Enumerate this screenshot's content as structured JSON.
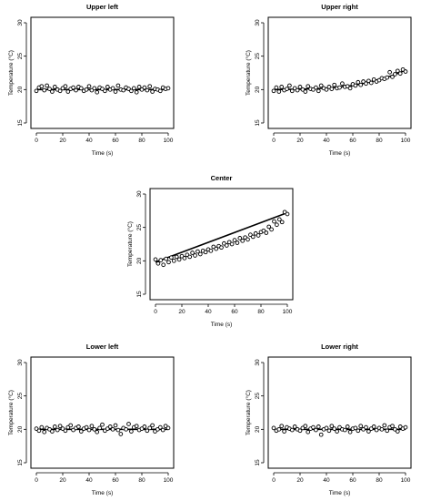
{
  "chart_data": [
    {
      "id": "upper-left",
      "type": "scatter",
      "title": "Upper left",
      "xlabel": "Time (s)",
      "ylabel": "Temperature (°C)",
      "xlim": [
        0,
        100
      ],
      "ylim": [
        15,
        30
      ],
      "xticks": [
        0,
        20,
        40,
        60,
        80,
        100
      ],
      "yticks": [
        15,
        20,
        25,
        30
      ],
      "fit": {
        "x": [
          0,
          20,
          40,
          60,
          80,
          100
        ],
        "y": [
          20.0,
          20.0,
          20.0,
          20.0,
          20.0,
          20.0
        ]
      },
      "x": [
        0,
        2,
        4,
        6,
        8,
        10,
        12,
        14,
        16,
        18,
        20,
        22,
        24,
        26,
        28,
        30,
        32,
        34,
        36,
        38,
        40,
        42,
        44,
        46,
        48,
        50,
        52,
        54,
        56,
        58,
        60,
        62,
        64,
        66,
        68,
        70,
        72,
        74,
        76,
        78,
        80,
        82,
        84,
        86,
        88,
        90,
        92,
        94,
        96,
        98,
        100
      ],
      "y": [
        19.8,
        20.3,
        20.5,
        19.9,
        20.6,
        20.1,
        19.7,
        20.4,
        20.0,
        19.8,
        20.2,
        20.5,
        19.7,
        20.1,
        20.3,
        19.9,
        20.4,
        20.2,
        19.8,
        20.0,
        20.5,
        19.9,
        20.2,
        19.6,
        20.3,
        20.1,
        19.8,
        20.4,
        20.0,
        20.2,
        19.7,
        20.6,
        20.0,
        19.9,
        20.3,
        20.1,
        19.8,
        20.2,
        19.6,
        20.4,
        20.0,
        20.3,
        19.9,
        20.5,
        19.7,
        20.1,
        20.0,
        19.8,
        20.3,
        20.1,
        20.2
      ]
    },
    {
      "id": "upper-right",
      "type": "scatter",
      "title": "Upper right",
      "xlabel": "Time (s)",
      "ylabel": "Temperature (°C)",
      "xlim": [
        0,
        100
      ],
      "ylim": [
        15,
        30
      ],
      "xticks": [
        0,
        20,
        40,
        60,
        80,
        100
      ],
      "yticks": [
        15,
        20,
        25,
        30
      ],
      "fit": {
        "x": [
          0,
          20,
          40,
          60,
          70,
          80,
          85,
          90,
          95,
          100
        ],
        "y": [
          20.0,
          20.05,
          20.2,
          20.6,
          21.0,
          21.5,
          21.8,
          22.1,
          22.5,
          22.9
        ]
      },
      "x": [
        0,
        2,
        4,
        6,
        8,
        10,
        12,
        14,
        16,
        18,
        20,
        22,
        24,
        26,
        28,
        30,
        32,
        34,
        36,
        38,
        40,
        42,
        44,
        46,
        48,
        50,
        52,
        54,
        56,
        58,
        60,
        62,
        64,
        66,
        68,
        70,
        72,
        74,
        76,
        78,
        80,
        82,
        84,
        86,
        88,
        90,
        92,
        94,
        96,
        98,
        100
      ],
      "y": [
        19.8,
        20.3,
        19.7,
        20.4,
        19.9,
        20.1,
        20.6,
        19.8,
        20.2,
        19.9,
        20.4,
        20.0,
        19.7,
        20.5,
        20.1,
        20.0,
        20.3,
        19.8,
        20.6,
        20.2,
        20.0,
        20.4,
        20.1,
        20.7,
        20.2,
        20.3,
        20.9,
        20.4,
        20.5,
        20.2,
        20.8,
        20.6,
        21.1,
        20.7,
        21.2,
        20.9,
        21.3,
        21.0,
        21.5,
        21.2,
        21.4,
        21.7,
        21.6,
        21.8,
        22.6,
        21.9,
        22.3,
        22.8,
        22.4,
        23.0,
        22.7
      ]
    },
    {
      "id": "center",
      "type": "scatter",
      "title": "Center",
      "xlabel": "Time (s)",
      "ylabel": "Temperature (°C)",
      "xlim": [
        0,
        100
      ],
      "ylim": [
        15,
        30
      ],
      "xticks": [
        0,
        20,
        40,
        60,
        80,
        100
      ],
      "yticks": [
        15,
        20,
        25,
        30
      ],
      "fit": {
        "x": [
          0,
          100
        ],
        "y": [
          19.8,
          27.2
        ]
      },
      "x": [
        0,
        2,
        4,
        6,
        8,
        10,
        12,
        14,
        16,
        18,
        20,
        22,
        24,
        26,
        28,
        30,
        32,
        34,
        36,
        38,
        40,
        42,
        44,
        46,
        48,
        50,
        52,
        54,
        56,
        58,
        60,
        62,
        64,
        66,
        68,
        70,
        72,
        74,
        76,
        78,
        80,
        82,
        84,
        86,
        88,
        90,
        92,
        94,
        96,
        98,
        100
      ],
      "y": [
        20.2,
        19.6,
        20.1,
        19.4,
        20.3,
        19.8,
        20.5,
        20.0,
        20.6,
        20.2,
        20.7,
        20.4,
        20.9,
        20.6,
        21.2,
        20.8,
        21.4,
        21.0,
        21.5,
        21.3,
        21.7,
        21.5,
        22.1,
        21.8,
        22.2,
        22.0,
        22.6,
        22.3,
        22.8,
        22.5,
        23.1,
        22.7,
        23.4,
        23.0,
        23.5,
        23.2,
        23.9,
        23.6,
        24.1,
        23.8,
        24.3,
        24.5,
        24.2,
        25.1,
        24.7,
        25.9,
        25.4,
        26.2,
        25.8,
        27.3,
        27.0
      ]
    },
    {
      "id": "lower-left",
      "type": "scatter",
      "title": "Lower left",
      "xlabel": "Time (s)",
      "ylabel": "Temperature (°C)",
      "xlim": [
        0,
        100
      ],
      "ylim": [
        15,
        30
      ],
      "xticks": [
        0,
        20,
        40,
        60,
        80,
        100
      ],
      "yticks": [
        15,
        20,
        25,
        30
      ],
      "fit": {
        "x": [
          0,
          20,
          40,
          60,
          80,
          100
        ],
        "y": [
          20.0,
          20.0,
          20.0,
          20.0,
          20.0,
          20.0
        ]
      },
      "x": [
        0,
        2,
        4,
        6,
        8,
        10,
        12,
        14,
        16,
        18,
        20,
        22,
        24,
        26,
        28,
        30,
        32,
        34,
        36,
        38,
        40,
        42,
        44,
        46,
        48,
        50,
        52,
        54,
        56,
        58,
        60,
        62,
        64,
        66,
        68,
        70,
        72,
        74,
        76,
        78,
        80,
        82,
        84,
        86,
        88,
        90,
        92,
        94,
        96,
        98,
        100
      ],
      "y": [
        20.1,
        19.8,
        20.3,
        19.6,
        20.2,
        20.0,
        19.7,
        20.4,
        19.9,
        20.5,
        20.1,
        19.8,
        20.3,
        20.6,
        19.9,
        20.2,
        20.4,
        19.7,
        20.1,
        20.3,
        19.9,
        20.5,
        20.0,
        19.6,
        20.2,
        20.7,
        19.8,
        20.1,
        20.4,
        20.0,
        20.6,
        19.9,
        19.3,
        20.2,
        20.0,
        20.8,
        19.7,
        20.3,
        20.5,
        19.9,
        20.1,
        20.4,
        19.8,
        20.2,
        20.6,
        19.7,
        20.0,
        20.3,
        19.9,
        20.5,
        20.2
      ]
    },
    {
      "id": "lower-right",
      "type": "scatter",
      "title": "Lower right",
      "xlabel": "Time (s)",
      "ylabel": "Temperature (°C)",
      "xlim": [
        0,
        100
      ],
      "ylim": [
        15,
        30
      ],
      "xticks": [
        0,
        20,
        40,
        60,
        80,
        100
      ],
      "yticks": [
        15,
        20,
        25,
        30
      ],
      "fit": {
        "x": [
          0,
          20,
          40,
          60,
          80,
          100
        ],
        "y": [
          20.0,
          20.0,
          20.0,
          20.0,
          20.0,
          20.0
        ]
      },
      "x": [
        0,
        2,
        4,
        6,
        8,
        10,
        12,
        14,
        16,
        18,
        20,
        22,
        24,
        26,
        28,
        30,
        32,
        34,
        36,
        38,
        40,
        42,
        44,
        46,
        48,
        50,
        52,
        54,
        56,
        58,
        60,
        62,
        64,
        66,
        68,
        70,
        72,
        74,
        76,
        78,
        80,
        82,
        84,
        86,
        88,
        90,
        92,
        94,
        96,
        98,
        100
      ],
      "y": [
        20.2,
        19.8,
        20.0,
        20.5,
        19.7,
        20.3,
        20.1,
        19.9,
        20.4,
        20.0,
        19.8,
        20.2,
        20.5,
        19.6,
        20.1,
        20.3,
        19.9,
        20.4,
        19.2,
        20.0,
        20.2,
        19.8,
        20.5,
        20.1,
        19.7,
        20.3,
        20.0,
        19.9,
        20.4,
        19.6,
        20.1,
        20.2,
        19.8,
        20.5,
        20.0,
        20.3,
        19.7,
        20.1,
        20.4,
        19.9,
        20.2,
        20.0,
        20.6,
        19.8,
        20.3,
        20.5,
        20.0,
        19.7,
        20.4,
        20.1,
        20.3
      ]
    }
  ]
}
